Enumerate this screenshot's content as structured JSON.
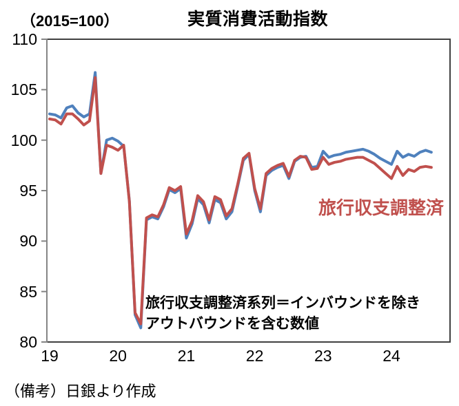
{
  "title": "実質消費活動指数",
  "unit_label": "（2015=100）",
  "note": "（備考）日銀より作成",
  "annotation": {
    "line1": "旅行収支調整済系列＝インバウンドを除き",
    "line2": "アウトバウンドを含む数値"
  },
  "series_label_adjusted": "旅行収支調整済",
  "colors": {
    "index_line": "#4F81BD",
    "adjusted_line": "#C0504D",
    "axis": "#848484",
    "border": "#3f3f3f"
  },
  "chart_data": {
    "type": "line",
    "title": "実質消費活動指数",
    "ylabel": "（2015=100）",
    "ylim": [
      80,
      110
    ],
    "yticks": [
      "110",
      "105",
      "100",
      "95",
      "90",
      "85",
      "80"
    ],
    "ytick_values": [
      110,
      105,
      100,
      95,
      90,
      85,
      80
    ],
    "xticks": [
      "19",
      "20",
      "21",
      "22",
      "23",
      "24"
    ],
    "x_frequency": "monthly",
    "x_start": "2019-01",
    "x_end": "2024-08",
    "grid": false,
    "legend_position": "inline-label-right",
    "series": [
      {
        "name": "実質消費活動指数",
        "color": "#4F81BD",
        "values": [
          102.6,
          102.5,
          102.2,
          103.2,
          103.4,
          102.7,
          102.3,
          102.6,
          106.7,
          96.7,
          100.0,
          100.2,
          99.9,
          99.4,
          94.0,
          82.7,
          81.4,
          92.1,
          92.4,
          92.2,
          93.4,
          95.1,
          94.8,
          95.2,
          90.3,
          91.7,
          94.2,
          93.6,
          91.8,
          94.1,
          93.8,
          92.2,
          92.9,
          95.4,
          98.0,
          98.6,
          95.0,
          92.9,
          96.5,
          97.0,
          97.3,
          97.5,
          96.2,
          97.9,
          98.3,
          98.4,
          97.3,
          97.4,
          98.9,
          98.3,
          98.5,
          98.6,
          98.8,
          98.9,
          99.0,
          99.1,
          98.9,
          98.6,
          98.2,
          97.9,
          97.6,
          98.9,
          98.3,
          98.6,
          98.4,
          98.8,
          99.0,
          98.8
        ]
      },
      {
        "name": "旅行収支調整済",
        "color": "#C0504D",
        "values": [
          102.1,
          102.0,
          101.6,
          102.6,
          102.6,
          102.1,
          101.5,
          101.9,
          106.2,
          96.7,
          99.5,
          99.3,
          99.0,
          99.5,
          93.9,
          82.9,
          81.8,
          92.3,
          92.6,
          92.4,
          93.6,
          95.3,
          95.0,
          95.4,
          90.7,
          92.0,
          94.5,
          93.9,
          92.1,
          94.4,
          94.1,
          92.5,
          93.2,
          95.6,
          98.2,
          98.7,
          95.2,
          93.2,
          96.7,
          97.2,
          97.5,
          97.7,
          96.4,
          98.0,
          98.4,
          98.3,
          97.1,
          97.2,
          98.3,
          97.6,
          97.8,
          97.9,
          98.1,
          98.2,
          98.3,
          98.3,
          98.0,
          97.7,
          97.2,
          96.7,
          96.2,
          97.4,
          96.5,
          97.1,
          96.9,
          97.3,
          97.4,
          97.3
        ]
      }
    ]
  }
}
